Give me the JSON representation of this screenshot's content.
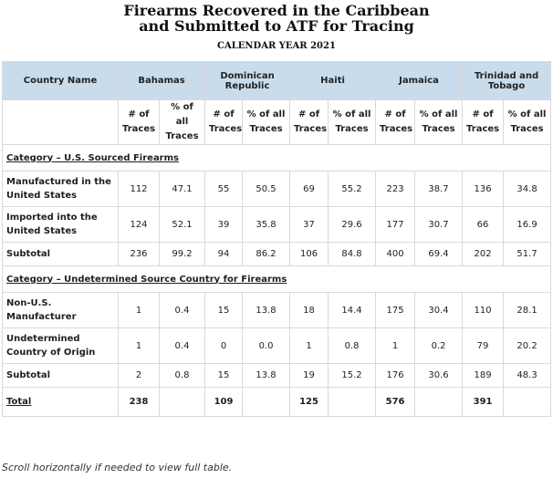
{
  "title_line1": "Firearms Recovered in the Caribbean",
  "title_line2": "and Submitted to ATF for Tracing",
  "subtitle": "CALENDAR YEAR 2021",
  "header": {
    "country_name": "Country Name",
    "countries": [
      "Bahamas",
      "Dominican Republic",
      "Haiti",
      "Jamaica",
      "Trinidad and Tobago"
    ],
    "col_traces": "# of Traces",
    "col_percent": "% of all Traces"
  },
  "category_us": "Category – U.S. Sourced Firearms",
  "category_undetermined": "Category – Undetermined Source Country for Firearms",
  "rows_us": [
    {
      "label": "Manufactured in the United States",
      "values": [
        "112",
        "47.1",
        "55",
        "50.5",
        "69",
        "55.2",
        "223",
        "38.7",
        "136",
        "34.8"
      ]
    },
    {
      "label": "Imported into the United States",
      "values": [
        "124",
        "52.1",
        "39",
        "35.8",
        "37",
        "29.6",
        "177",
        "30.7",
        "66",
        "16.9"
      ]
    },
    {
      "label": "Subtotal",
      "values": [
        "236",
        "99.2",
        "94",
        "86.2",
        "106",
        "84.8",
        "400",
        "69.4",
        "202",
        "51.7"
      ]
    }
  ],
  "rows_undetermined": [
    {
      "label": "Non-U.S. Manufacturer",
      "values": [
        "1",
        "0.4",
        "15",
        "13.8",
        "18",
        "14.4",
        "175",
        "30.4",
        "110",
        "28.1"
      ]
    },
    {
      "label": "Undetermined Country of Origin",
      "values": [
        "1",
        "0.4",
        "0",
        "0.0",
        "1",
        "0.8",
        "1",
        "0.2",
        "79",
        "20.2"
      ]
    },
    {
      "label": "Subtotal",
      "values": [
        "2",
        "0.8",
        "15",
        "13.8",
        "19",
        "15.2",
        "176",
        "30.6",
        "189",
        "48.3"
      ]
    }
  ],
  "total": {
    "label": "Total",
    "values": [
      "238",
      "109",
      "125",
      "576",
      "391"
    ]
  },
  "note": "Scroll horizontally if needed to view full table."
}
